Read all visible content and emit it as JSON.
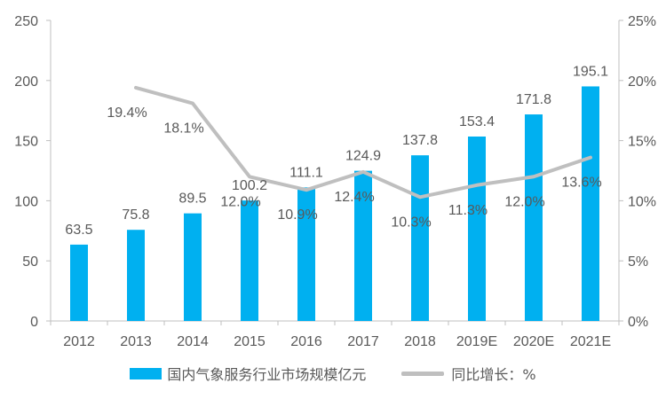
{
  "colors": {
    "bar": "#00B0F0",
    "line": "#BFBFBF",
    "axis_text": "#595959",
    "axis_line": "#BFBFBF"
  },
  "chart_data": {
    "type": "bar",
    "categories": [
      "2012",
      "2013",
      "2014",
      "2015",
      "2016",
      "2017",
      "2018",
      "2019E",
      "2020E",
      "2021E"
    ],
    "series": [
      {
        "name": "国内气象服务行业市场规模亿元",
        "type": "bar",
        "axis": "left",
        "values": [
          63.5,
          75.8,
          89.5,
          100.2,
          111.1,
          124.9,
          137.8,
          153.4,
          171.8,
          195.1
        ],
        "labels": [
          "63.5",
          "75.8",
          "89.5",
          "100.2",
          "111.1",
          "124.9",
          "137.8",
          "153.4",
          "171.8",
          "195.1"
        ]
      },
      {
        "name": "同比增长：%",
        "type": "line",
        "axis": "right",
        "values": [
          null,
          19.4,
          18.1,
          12.0,
          10.9,
          12.4,
          10.3,
          11.3,
          12.0,
          13.6
        ],
        "labels": [
          "",
          "19.4%",
          "18.1%",
          "12.0%",
          "10.9%",
          "12.4%",
          "10.3%",
          "11.3%",
          "12.0%",
          "13.6%"
        ]
      }
    ],
    "y_left": {
      "min": 0,
      "max": 250,
      "ticks": [
        "0",
        "50",
        "100",
        "150",
        "200",
        "250"
      ]
    },
    "y_right": {
      "min": 0,
      "max": 25,
      "ticks": [
        "0%",
        "5%",
        "10%",
        "15%",
        "20%",
        "25%"
      ]
    },
    "grid": false,
    "legend_position": "bottom"
  }
}
